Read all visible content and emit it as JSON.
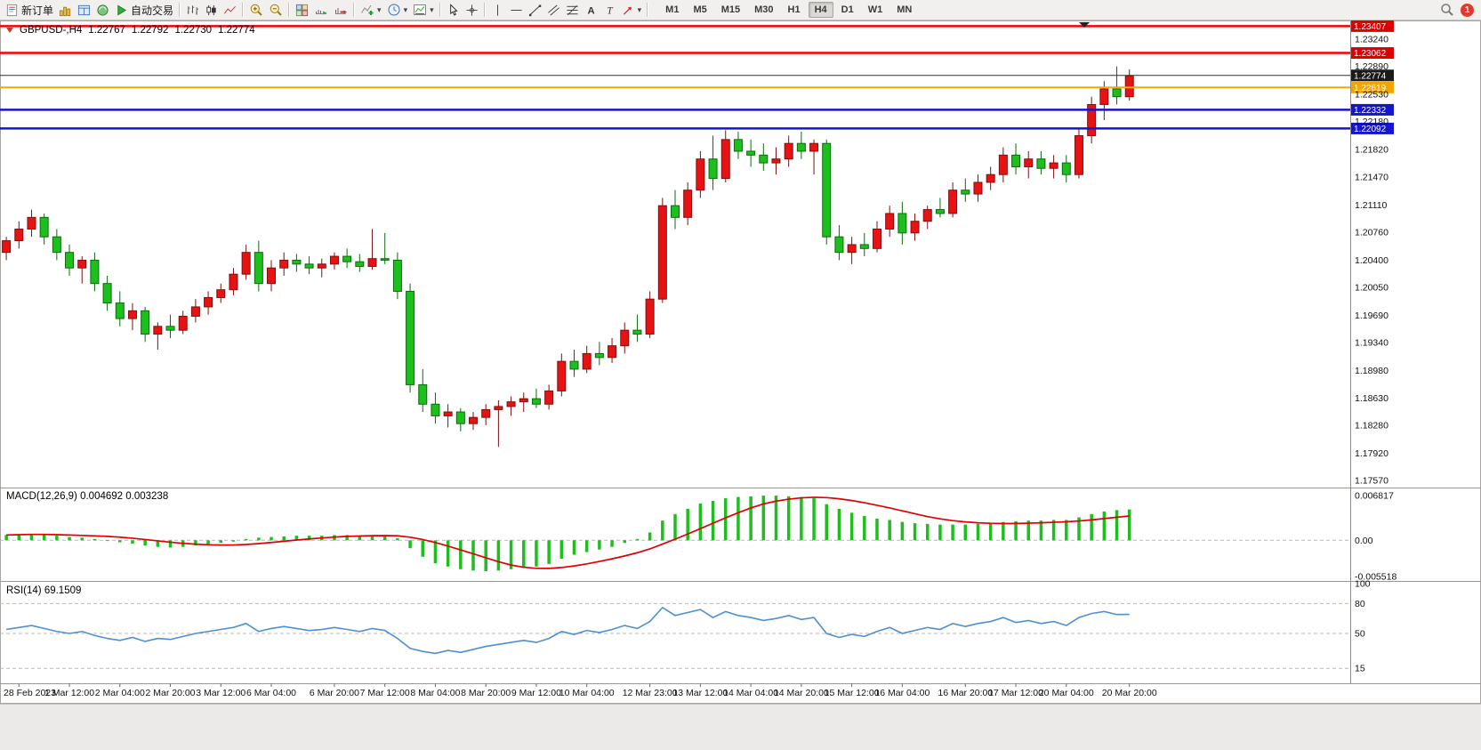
{
  "toolbar": {
    "new_order_label": "新订单",
    "auto_trading_label": "自动交易",
    "timeframes": [
      "M1",
      "M5",
      "M15",
      "M30",
      "H1",
      "H4",
      "D1",
      "W1",
      "MN"
    ],
    "active_timeframe": "H4",
    "notification_count": "1"
  },
  "icons": {
    "text_tool": "A",
    "label_tool": "T",
    "chevron_down": "▾"
  },
  "symbol_header": {
    "symbol": "GBPUSD-,H4",
    "open": "1.22767",
    "high": "1.22792",
    "low": "1.22730",
    "close": "1.22774"
  },
  "chart_data": [
    {
      "type": "candlestick",
      "symbol": "GBPUSD-",
      "timeframe": "H4",
      "current_ohlc": {
        "open": 1.22767,
        "high": 1.22792,
        "low": 1.2273,
        "close": 1.22774
      },
      "ylim": [
        1.17513,
        1.23457
      ],
      "up_color": "#e81212",
      "down_color": "#1dbf1d",
      "price_ticks": [
        "1.23240",
        "1.22890",
        "1.22530",
        "1.22180",
        "1.21820",
        "1.21470",
        "1.21110",
        "1.20760",
        "1.20400",
        "1.20050",
        "1.19690",
        "1.19340",
        "1.18980",
        "1.18630",
        "1.18280",
        "1.17920",
        "1.17570"
      ],
      "hlines": [
        {
          "price": 1.23407,
          "label": "1.23407",
          "color": "#f50000",
          "badge": "#dd0000",
          "lw": 2.5
        },
        {
          "price": 1.23062,
          "label": "1.23062",
          "color": "#f50000",
          "badge": "#dd0000",
          "lw": 2.5
        },
        {
          "price": 1.22774,
          "label": "1.22774",
          "color": "#2e2e2e",
          "badge": "#1a1a1a",
          "lw": 1
        },
        {
          "price": 1.22619,
          "label": "1.22619",
          "color": "#f5a800",
          "badge": "#f0a500",
          "lw": 2
        },
        {
          "price": 1.22332,
          "label": "1.22332",
          "color": "#1515cd",
          "badge": "#1515cd",
          "lw": 2.5
        },
        {
          "price": 1.22092,
          "label": "1.22092",
          "color": "#1515cd",
          "badge": "#1515cd",
          "lw": 2.5
        }
      ],
      "candles": [
        [
          1.205,
          1.207,
          1.204,
          1.2065
        ],
        [
          1.2065,
          1.209,
          1.2055,
          1.208
        ],
        [
          1.208,
          1.2105,
          1.207,
          1.2095
        ],
        [
          1.2095,
          1.21,
          1.206,
          1.207
        ],
        [
          1.207,
          1.208,
          1.204,
          1.205
        ],
        [
          1.205,
          1.206,
          1.202,
          1.203
        ],
        [
          1.203,
          1.2045,
          1.201,
          1.204
        ],
        [
          1.204,
          1.205,
          1.2,
          1.201
        ],
        [
          1.201,
          1.202,
          1.1975,
          1.1985
        ],
        [
          1.1985,
          1.2,
          1.1955,
          1.1965
        ],
        [
          1.1965,
          1.1985,
          1.195,
          1.1975
        ],
        [
          1.1975,
          1.198,
          1.1935,
          1.1945
        ],
        [
          1.1945,
          1.196,
          1.1925,
          1.1955
        ],
        [
          1.1955,
          1.197,
          1.194,
          1.195
        ],
        [
          1.195,
          1.1975,
          1.1945,
          1.1968
        ],
        [
          1.1968,
          1.199,
          1.196,
          1.198
        ],
        [
          1.198,
          1.2,
          1.197,
          1.1992
        ],
        [
          1.1992,
          1.201,
          1.1985,
          1.2002
        ],
        [
          1.2002,
          1.203,
          1.1995,
          1.2022
        ],
        [
          1.2022,
          1.206,
          1.2015,
          1.205
        ],
        [
          1.205,
          1.2065,
          1.2,
          1.201
        ],
        [
          1.201,
          1.204,
          1.2,
          1.203
        ],
        [
          1.203,
          1.205,
          1.202,
          1.204
        ],
        [
          1.204,
          1.2048,
          1.2025,
          1.2035
        ],
        [
          1.2035,
          1.2045,
          1.2022,
          1.203
        ],
        [
          1.203,
          1.2042,
          1.2018,
          1.2035
        ],
        [
          1.2035,
          1.205,
          1.2028,
          1.2045
        ],
        [
          1.2045,
          1.2055,
          1.203,
          1.2038
        ],
        [
          1.2038,
          1.2048,
          1.2025,
          1.2032
        ],
        [
          1.2032,
          1.208,
          1.2028,
          1.2042
        ],
        [
          1.2042,
          1.2075,
          1.2035,
          1.204
        ],
        [
          1.204,
          1.205,
          1.199,
          1.2
        ],
        [
          1.2,
          1.201,
          1.187,
          1.188
        ],
        [
          1.188,
          1.19,
          1.1845,
          1.1855
        ],
        [
          1.1855,
          1.187,
          1.183,
          1.184
        ],
        [
          1.184,
          1.1855,
          1.1825,
          1.1845
        ],
        [
          1.1845,
          1.185,
          1.182,
          1.183
        ],
        [
          1.183,
          1.1845,
          1.1822,
          1.1838
        ],
        [
          1.1838,
          1.1855,
          1.1828,
          1.1848
        ],
        [
          1.1848,
          1.186,
          1.18,
          1.1852
        ],
        [
          1.1852,
          1.1865,
          1.184,
          1.1858
        ],
        [
          1.1858,
          1.187,
          1.1845,
          1.1862
        ],
        [
          1.1862,
          1.1875,
          1.185,
          1.1855
        ],
        [
          1.1855,
          1.188,
          1.1848,
          1.1872
        ],
        [
          1.1872,
          1.192,
          1.1865,
          1.191
        ],
        [
          1.191,
          1.1925,
          1.189,
          1.19
        ],
        [
          1.19,
          1.193,
          1.1895,
          1.192
        ],
        [
          1.192,
          1.1935,
          1.1905,
          1.1915
        ],
        [
          1.1915,
          1.194,
          1.1908,
          1.193
        ],
        [
          1.193,
          1.196,
          1.192,
          1.195
        ],
        [
          1.195,
          1.197,
          1.1935,
          1.1945
        ],
        [
          1.1945,
          1.2,
          1.194,
          1.199
        ],
        [
          1.199,
          1.212,
          1.1985,
          1.211
        ],
        [
          1.211,
          1.213,
          1.208,
          1.2095
        ],
        [
          1.2095,
          1.214,
          1.2085,
          1.213
        ],
        [
          1.213,
          1.218,
          1.212,
          1.217
        ],
        [
          1.217,
          1.22,
          1.213,
          1.2145
        ],
        [
          1.2145,
          1.2207,
          1.214,
          1.2195
        ],
        [
          1.2195,
          1.2205,
          1.217,
          1.218
        ],
        [
          1.218,
          1.2195,
          1.216,
          1.2175
        ],
        [
          1.2175,
          1.219,
          1.2155,
          1.2165
        ],
        [
          1.2165,
          1.2185,
          1.215,
          1.217
        ],
        [
          1.217,
          1.22,
          1.216,
          1.219
        ],
        [
          1.219,
          1.2205,
          1.217,
          1.218
        ],
        [
          1.218,
          1.2195,
          1.215,
          1.219
        ],
        [
          1.219,
          1.2195,
          1.206,
          1.207
        ],
        [
          1.207,
          1.2085,
          1.204,
          1.205
        ],
        [
          1.205,
          1.207,
          1.2035,
          1.206
        ],
        [
          1.206,
          1.2075,
          1.2045,
          1.2055
        ],
        [
          1.2055,
          1.209,
          1.205,
          1.208
        ],
        [
          1.208,
          1.211,
          1.207,
          1.21
        ],
        [
          1.21,
          1.2115,
          1.206,
          1.2075
        ],
        [
          1.2075,
          1.21,
          1.2065,
          1.209
        ],
        [
          1.209,
          1.211,
          1.208,
          1.2105
        ],
        [
          1.2105,
          1.212,
          1.2095,
          1.21
        ],
        [
          1.21,
          1.214,
          1.2095,
          1.213
        ],
        [
          1.213,
          1.2145,
          1.2115,
          1.2125
        ],
        [
          1.2125,
          1.215,
          1.2115,
          1.214
        ],
        [
          1.214,
          1.216,
          1.213,
          1.215
        ],
        [
          1.215,
          1.2185,
          1.214,
          1.2175
        ],
        [
          1.2175,
          1.219,
          1.215,
          1.216
        ],
        [
          1.216,
          1.218,
          1.2145,
          1.217
        ],
        [
          1.217,
          1.218,
          1.215,
          1.2158
        ],
        [
          1.2158,
          1.2175,
          1.2145,
          1.2165
        ],
        [
          1.2165,
          1.2175,
          1.214,
          1.215
        ],
        [
          1.215,
          1.221,
          1.2145,
          1.22
        ],
        [
          1.22,
          1.225,
          1.219,
          1.224
        ],
        [
          1.224,
          1.227,
          1.222,
          1.226
        ],
        [
          1.226,
          1.2289,
          1.224,
          1.225
        ],
        [
          1.225,
          1.2285,
          1.2245,
          1.2277
        ]
      ],
      "x_labels": [
        "28 Feb 2023",
        "1 Mar 12:00",
        "2 Mar 04:00",
        "2 Mar 20:00",
        "3 Mar 12:00",
        "6 Mar 04:00",
        "6 Mar 20:00",
        "7 Mar 12:00",
        "8 Mar 04:00",
        "8 Mar 20:00",
        "9 Mar 12:00",
        "10 Mar 04:00",
        "12 Mar 23:00",
        "13 Mar 12:00",
        "14 Mar 04:00",
        "14 Mar 20:00",
        "15 Mar 12:00",
        "16 Mar 04:00",
        "16 Mar 20:00",
        "17 Mar 12:00",
        "20 Mar 04:00",
        "20 Mar 20:00"
      ],
      "x_label_indices": [
        1,
        5,
        9,
        13,
        17,
        21,
        26,
        30,
        34,
        38,
        42,
        46,
        51,
        55,
        59,
        63,
        67,
        71,
        76,
        80,
        84,
        89
      ]
    },
    {
      "type": "bar",
      "label": "MACD(12,26,9) 0.004692 0.003238",
      "name": "MACD",
      "params": [
        12,
        26,
        9
      ],
      "main_value": 0.004692,
      "signal_value": 0.003238,
      "signal_period": 9,
      "ylim": [
        -0.00619,
        0.0079
      ],
      "hist_color": "#1dbf1d",
      "signal_color": "#e00000",
      "axis_ticks": [
        {
          "v": 0.006817,
          "label": "0.006817"
        },
        {
          "v": 0,
          "label": "0.00"
        },
        {
          "v": -0.005518,
          "label": "-0.005518"
        }
      ],
      "histogram": [
        0.0008,
        0.0009,
        0.001,
        0.0009,
        0.0007,
        0.0005,
        0.0004,
        0.0002,
        0.0,
        -0.0003,
        -0.0005,
        -0.0008,
        -0.001,
        -0.0011,
        -0.001,
        -0.0008,
        -0.0006,
        -0.0004,
        -0.0002,
        0.0002,
        0.0004,
        0.0005,
        0.0006,
        0.0007,
        0.0007,
        0.0007,
        0.0008,
        0.0008,
        0.0007,
        0.0008,
        0.0007,
        0.0003,
        -0.0012,
        -0.0025,
        -0.0035,
        -0.004,
        -0.0044,
        -0.0046,
        -0.0047,
        -0.0046,
        -0.0044,
        -0.0042,
        -0.004,
        -0.0036,
        -0.0028,
        -0.0022,
        -0.0018,
        -0.0014,
        -0.001,
        -0.0004,
        0.0002,
        0.0012,
        0.003,
        0.004,
        0.0048,
        0.0056,
        0.006,
        0.0064,
        0.0066,
        0.0067,
        0.0068,
        0.0068,
        0.0067,
        0.0066,
        0.0064,
        0.0055,
        0.0048,
        0.0042,
        0.0037,
        0.0033,
        0.0031,
        0.0028,
        0.0026,
        0.0025,
        0.0024,
        0.0024,
        0.0024,
        0.0025,
        0.0026,
        0.0028,
        0.0029,
        0.003,
        0.003,
        0.0031,
        0.0031,
        0.0035,
        0.004,
        0.0044,
        0.0046,
        0.0047
      ]
    },
    {
      "type": "line",
      "label": "RSI(14) 69.1509",
      "name": "RSI",
      "period": 14,
      "value": 69.1509,
      "ylim": [
        0,
        100
      ],
      "line_color": "#4d8fd1",
      "levels": [
        80,
        50,
        15
      ],
      "axis_ticks": [
        {
          "v": 100,
          "label": "100"
        },
        {
          "v": 80,
          "label": "80"
        },
        {
          "v": 50,
          "label": "50"
        },
        {
          "v": 15,
          "label": "15"
        }
      ],
      "values": [
        54,
        56,
        58,
        55,
        52,
        50,
        52,
        48,
        45,
        43,
        46,
        42,
        45,
        44,
        47,
        50,
        52,
        54,
        56,
        60,
        52,
        55,
        57,
        55,
        53,
        54,
        56,
        54,
        52,
        55,
        53,
        45,
        35,
        32,
        30,
        33,
        31,
        34,
        37,
        39,
        41,
        43,
        41,
        45,
        52,
        49,
        53,
        51,
        54,
        58,
        55,
        62,
        76,
        68,
        71,
        74,
        66,
        72,
        68,
        66,
        63,
        65,
        68,
        64,
        66,
        50,
        46,
        49,
        47,
        52,
        56,
        50,
        53,
        56,
        54,
        60,
        57,
        60,
        62,
        66,
        61,
        63,
        60,
        62,
        58,
        66,
        70,
        72,
        69,
        69.15
      ]
    }
  ]
}
